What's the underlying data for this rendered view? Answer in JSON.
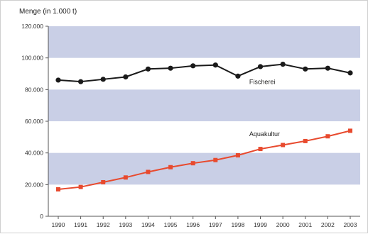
{
  "chart_data": {
    "type": "line",
    "ylabel": "Menge (in 1.000 t)",
    "xlabel": "",
    "x": [
      "1990",
      "1991",
      "1992",
      "1993",
      "1994",
      "1995",
      "1996",
      "1997",
      "1998",
      "1999",
      "2000",
      "2001",
      "2002",
      "2003"
    ],
    "ylim": [
      0,
      120000
    ],
    "yticks": [
      "0",
      "20.000",
      "40.000",
      "60.000",
      "80.000",
      "100.000",
      "120.000"
    ],
    "ytick_values": [
      0,
      20000,
      40000,
      60000,
      80000,
      100000,
      120000
    ],
    "background_bands": "alternating blue-gray bands (20.000–40.000, 60.000–80.000, 100.000–120.000)",
    "series": [
      {
        "name": "Fischerei",
        "color": "#1a1a1a",
        "marker": "circle",
        "values": [
          86000,
          85000,
          86500,
          88000,
          93000,
          93500,
          95000,
          95500,
          88500,
          94500,
          96000,
          93000,
          93500,
          90500
        ]
      },
      {
        "name": "Aquakultur",
        "color": "#e84a2e",
        "marker": "square",
        "values": [
          17000,
          18500,
          21500,
          24500,
          28000,
          31000,
          33500,
          35500,
          38500,
          42500,
          45000,
          47500,
          50500,
          54000
        ]
      }
    ]
  }
}
